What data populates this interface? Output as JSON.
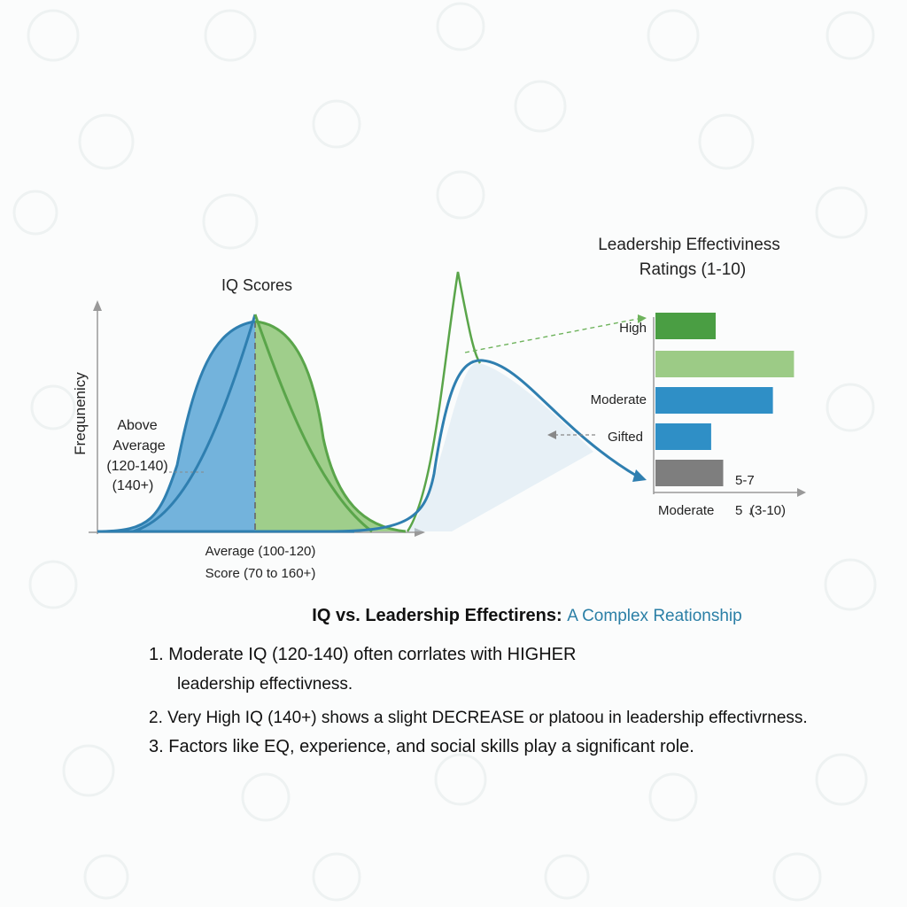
{
  "left_chart": {
    "title": "IQ Scores",
    "ylabel": "Frequnenicy",
    "annotation_lines": [
      "Above",
      "Average",
      "(120-140)",
      "(140+)"
    ],
    "xlabel_line1": "Average (100-120)",
    "xlabel_line2": "Score (70 to 160+)"
  },
  "right_chart": {
    "title_line1": "Leadership Effectiviness",
    "title_line2": "Ratings (1-10)",
    "bar_labels": [
      "High",
      "Moderate",
      "Gifted"
    ],
    "value_label": "5-7",
    "x_tick_labels": [
      "Moderate",
      "5",
      "(3-10)"
    ],
    "marker_symbol": "↓"
  },
  "chart_data": [
    {
      "type": "area",
      "title": "IQ Scores",
      "ylabel": "Frequnenicy",
      "series": [
        {
          "color": "#4f9fcf"
        },
        {
          "color": "#88c06a"
        }
      ]
    },
    {
      "type": "bar",
      "title": "Leadership Effectiviness Ratings (1-10)",
      "categories": [
        "High",
        "",
        "Moderate",
        "Gifted",
        ""
      ],
      "values": [
        4.0,
        9.2,
        7.8,
        3.7,
        4.5
      ],
      "xlim": [
        0,
        10
      ],
      "colors": [
        "#4a9e43",
        "#9ccb86",
        "#2f8fc6",
        "#2f8fc6",
        "#7e7e7e"
      ]
    }
  ],
  "findings": {
    "heading_main": "IQ vs. Leadership Effectirens:",
    "heading_sub": "A Complex Reationship",
    "item1_num": "1.",
    "item1_line1": "Moderate IQ (120-140) often corrlates with HIGHER",
    "item1_line2": "leadership effectivness.",
    "item2_num": "2.",
    "item2_text": "Very High IQ (140+) shows a slight DECREASE or platoou in leadership effectivrness.",
    "item3_num": "3.",
    "item3_text": "Factors like EQ, experience, and social skills play a significant role."
  },
  "colors": {
    "blue": "#2f7fb0",
    "blue_fill": "#5aa6d6",
    "green": "#5aa54a",
    "green_fill": "#8ec577",
    "grey": "#7e7e7e"
  }
}
